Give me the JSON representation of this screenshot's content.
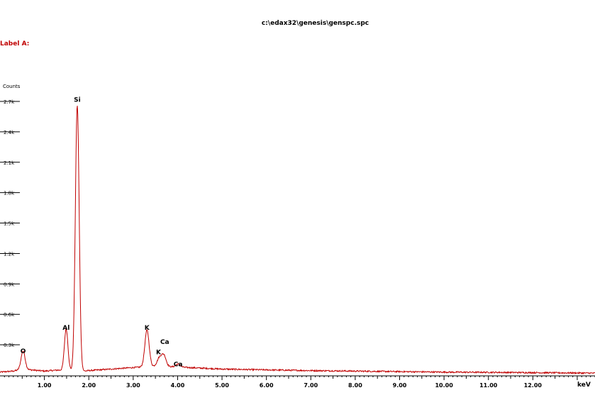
{
  "header": {
    "file_path": "c:\\edax32\\genesis\\genspc.spc",
    "label": "Label A:"
  },
  "colors": {
    "spectrum": "#c00000",
    "label": "#c00000",
    "axis": "#000000",
    "background": "#ffffff"
  },
  "chart_data": {
    "type": "line",
    "title": "",
    "ylabel": "Counts",
    "xlabel": "keV",
    "xlim": [
      0.0,
      13.4
    ],
    "ylim": [
      0,
      2750
    ],
    "grid": false,
    "legend": "none",
    "y_ticks": [
      {
        "value": 300,
        "label": "0.3k"
      },
      {
        "value": 600,
        "label": "0.6k"
      },
      {
        "value": 900,
        "label": "0.9k"
      },
      {
        "value": 1200,
        "label": "1.2k"
      },
      {
        "value": 1500,
        "label": "1.5k"
      },
      {
        "value": 1800,
        "label": "1.8k"
      },
      {
        "value": 2100,
        "label": "2.1k"
      },
      {
        "value": 2400,
        "label": "2.4k"
      },
      {
        "value": 2700,
        "label": "2.7k"
      }
    ],
    "x_ticks": [
      {
        "value": 1.0,
        "label": "1.00"
      },
      {
        "value": 2.0,
        "label": "2.00"
      },
      {
        "value": 3.0,
        "label": "3.00"
      },
      {
        "value": 4.0,
        "label": "4.00"
      },
      {
        "value": 5.0,
        "label": "5.00"
      },
      {
        "value": 6.0,
        "label": "6.00"
      },
      {
        "value": 7.0,
        "label": "7.00"
      },
      {
        "value": 8.0,
        "label": "8.00"
      },
      {
        "value": 9.0,
        "label": "9.00"
      },
      {
        "value": 10.0,
        "label": "10.00"
      },
      {
        "value": 11.0,
        "label": "11.00"
      },
      {
        "value": 12.0,
        "label": "12.00"
      }
    ],
    "baseline": [
      [
        0.0,
        30
      ],
      [
        0.3,
        40
      ],
      [
        0.5,
        60
      ],
      [
        1.0,
        40
      ],
      [
        1.3,
        50
      ],
      [
        1.9,
        40
      ],
      [
        2.0,
        45
      ],
      [
        2.5,
        60
      ],
      [
        3.0,
        75
      ],
      [
        3.2,
        80
      ],
      [
        3.5,
        90
      ],
      [
        4.0,
        80
      ],
      [
        4.5,
        70
      ],
      [
        5.0,
        60
      ],
      [
        6.0,
        52
      ],
      [
        7.0,
        45
      ],
      [
        8.0,
        40
      ],
      [
        9.0,
        35
      ],
      [
        10.0,
        30
      ],
      [
        11.0,
        28
      ],
      [
        12.0,
        25
      ],
      [
        13.4,
        20
      ]
    ],
    "peaks": [
      {
        "element": "O",
        "energy": 0.52,
        "counts": 180,
        "width": 0.045
      },
      {
        "element": "Al",
        "energy": 1.49,
        "counts": 410,
        "width": 0.04
      },
      {
        "element": "Si",
        "energy": 1.74,
        "counts": 2620,
        "width": 0.043
      },
      {
        "element": "K",
        "energy": 3.31,
        "counts": 360,
        "width": 0.048
      },
      {
        "element": "K",
        "energy": 3.59,
        "counts": 80,
        "width": 0.05
      },
      {
        "element": "Ca",
        "energy": 3.69,
        "counts": 110,
        "width": 0.05
      },
      {
        "element": "Ca",
        "energy": 4.01,
        "counts": 30,
        "width": 0.05
      }
    ],
    "annotations": [
      {
        "text": "O",
        "x": 0.52,
        "y": 190
      },
      {
        "text": "Al",
        "x": 1.49,
        "y": 420
      },
      {
        "text": "Si",
        "x": 1.74,
        "y": 2670
      },
      {
        "text": "K",
        "x": 3.31,
        "y": 420
      },
      {
        "text": "Ca",
        "x": 3.71,
        "y": 280
      },
      {
        "text": "K",
        "x": 3.57,
        "y": 180
      },
      {
        "text": "Ca",
        "x": 4.01,
        "y": 60
      }
    ]
  }
}
